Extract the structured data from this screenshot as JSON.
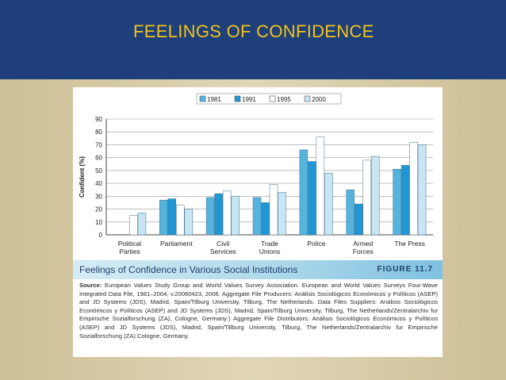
{
  "slide": {
    "title": "FEELINGS OF CONFIDENCE"
  },
  "figure": {
    "caption": "Feelings of Confidence in Various Social Institutions",
    "label": "FIGURE 11.7",
    "source_prefix": "Source:",
    "source": "European Values Study Group and World Values Survey Association. European and World Values Surveys Four-Wave Integrated Data File, 1981–2004, v.20060423, 2006. Aggregate File Producers: Análisis Sociológicos Económicos y Políticos (ASEP) and JD Systems (JDS), Madrid, Spain/Tilburg University, Tilburg, The Netherlands. Data Files Suppliers: Análisis Sociológicos Económicos y Políticos (ASEP) and JD Systems (JDS), Madrid, Spain/Tilburg University, Tilburg, The Netherlands/Zentralarchiv fur Empirische Sozialforschung (ZA), Cologne, Germany:) Aggregate File Distributors: Análisis Sociológicos Económicos y Políticos (ASEP) and JD Systems (JDS), Madrid, Spain/Tillburg University, Tilburg, The Netherlands/Zentralarchiv fur Empirische Sozialforschung (ZA) Cologne, Germany."
  },
  "chart_data": {
    "type": "bar",
    "title": "",
    "xlabel": "",
    "ylabel": "Confident (%)",
    "ylim": [
      0,
      90
    ],
    "yticks": [
      0,
      10,
      20,
      30,
      40,
      50,
      60,
      70,
      80,
      90
    ],
    "grid": true,
    "legend_position": "top",
    "categories": [
      [
        "Political",
        "Parties"
      ],
      [
        "Parliament"
      ],
      [
        "Civil",
        "Services"
      ],
      [
        "Trade",
        "Unions"
      ],
      [
        "Police"
      ],
      [
        "Armed",
        "Forces"
      ],
      [
        "The Press"
      ]
    ],
    "series": [
      {
        "name": "1981",
        "color": "#55b4de",
        "values": [
          null,
          27,
          29,
          29,
          66,
          35,
          51
        ]
      },
      {
        "name": "1991",
        "color": "#1f97d4",
        "values": [
          null,
          28,
          32,
          25,
          57,
          24,
          54
        ]
      },
      {
        "name": "1995",
        "color": "#ffffff",
        "values": [
          15,
          23,
          34,
          39,
          76,
          58,
          72
        ]
      },
      {
        "name": "2000",
        "color": "#c6e6f4",
        "values": [
          17,
          20,
          30,
          33,
          48,
          61,
          70
        ]
      }
    ]
  }
}
